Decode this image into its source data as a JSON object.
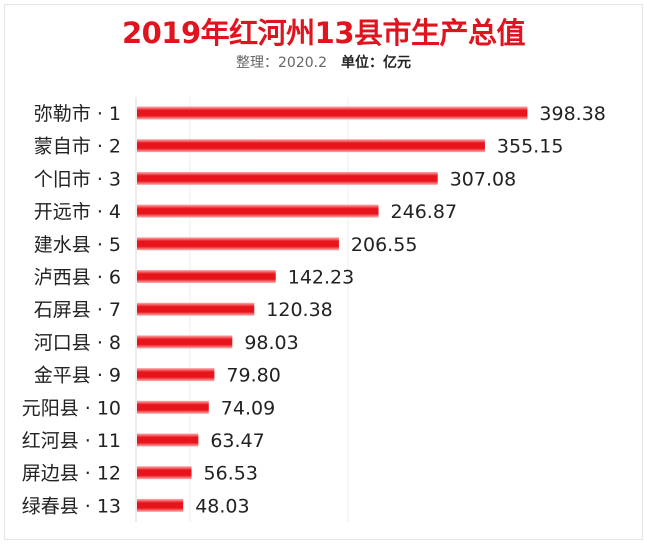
{
  "chart_data": {
    "type": "bar",
    "orientation": "horizontal",
    "title": "2019年红河州13县市生产总值",
    "subtitle_prefix": "整理：2020.2",
    "subtitle_unit": "单位：亿元",
    "categories": [
      "弥勒市 · 1",
      "蒙自市 · 2",
      "个旧市 · 3",
      "开远市 · 4",
      "建水县 · 5",
      "泸西县 · 6",
      "石屏县 · 7",
      "河口县 · 8",
      "金平县 · 9",
      "元阳县 · 10",
      "红河县 · 11",
      "屏边县 · 12",
      "绿春县 · 13"
    ],
    "values": [
      398.38,
      355.15,
      307.08,
      246.87,
      206.55,
      142.23,
      120.38,
      98.03,
      79.8,
      74.09,
      63.47,
      56.53,
      48.03
    ],
    "value_labels": [
      "398.38",
      "355.15",
      "307.08",
      "246.87",
      "206.55",
      "142.23",
      "120.38",
      "98.03",
      "79.80",
      "74.09",
      "63.47",
      "56.53",
      "48.03"
    ],
    "xlim": [
      0,
      400
    ],
    "bar_color": "#e8141c",
    "legend": "none"
  }
}
